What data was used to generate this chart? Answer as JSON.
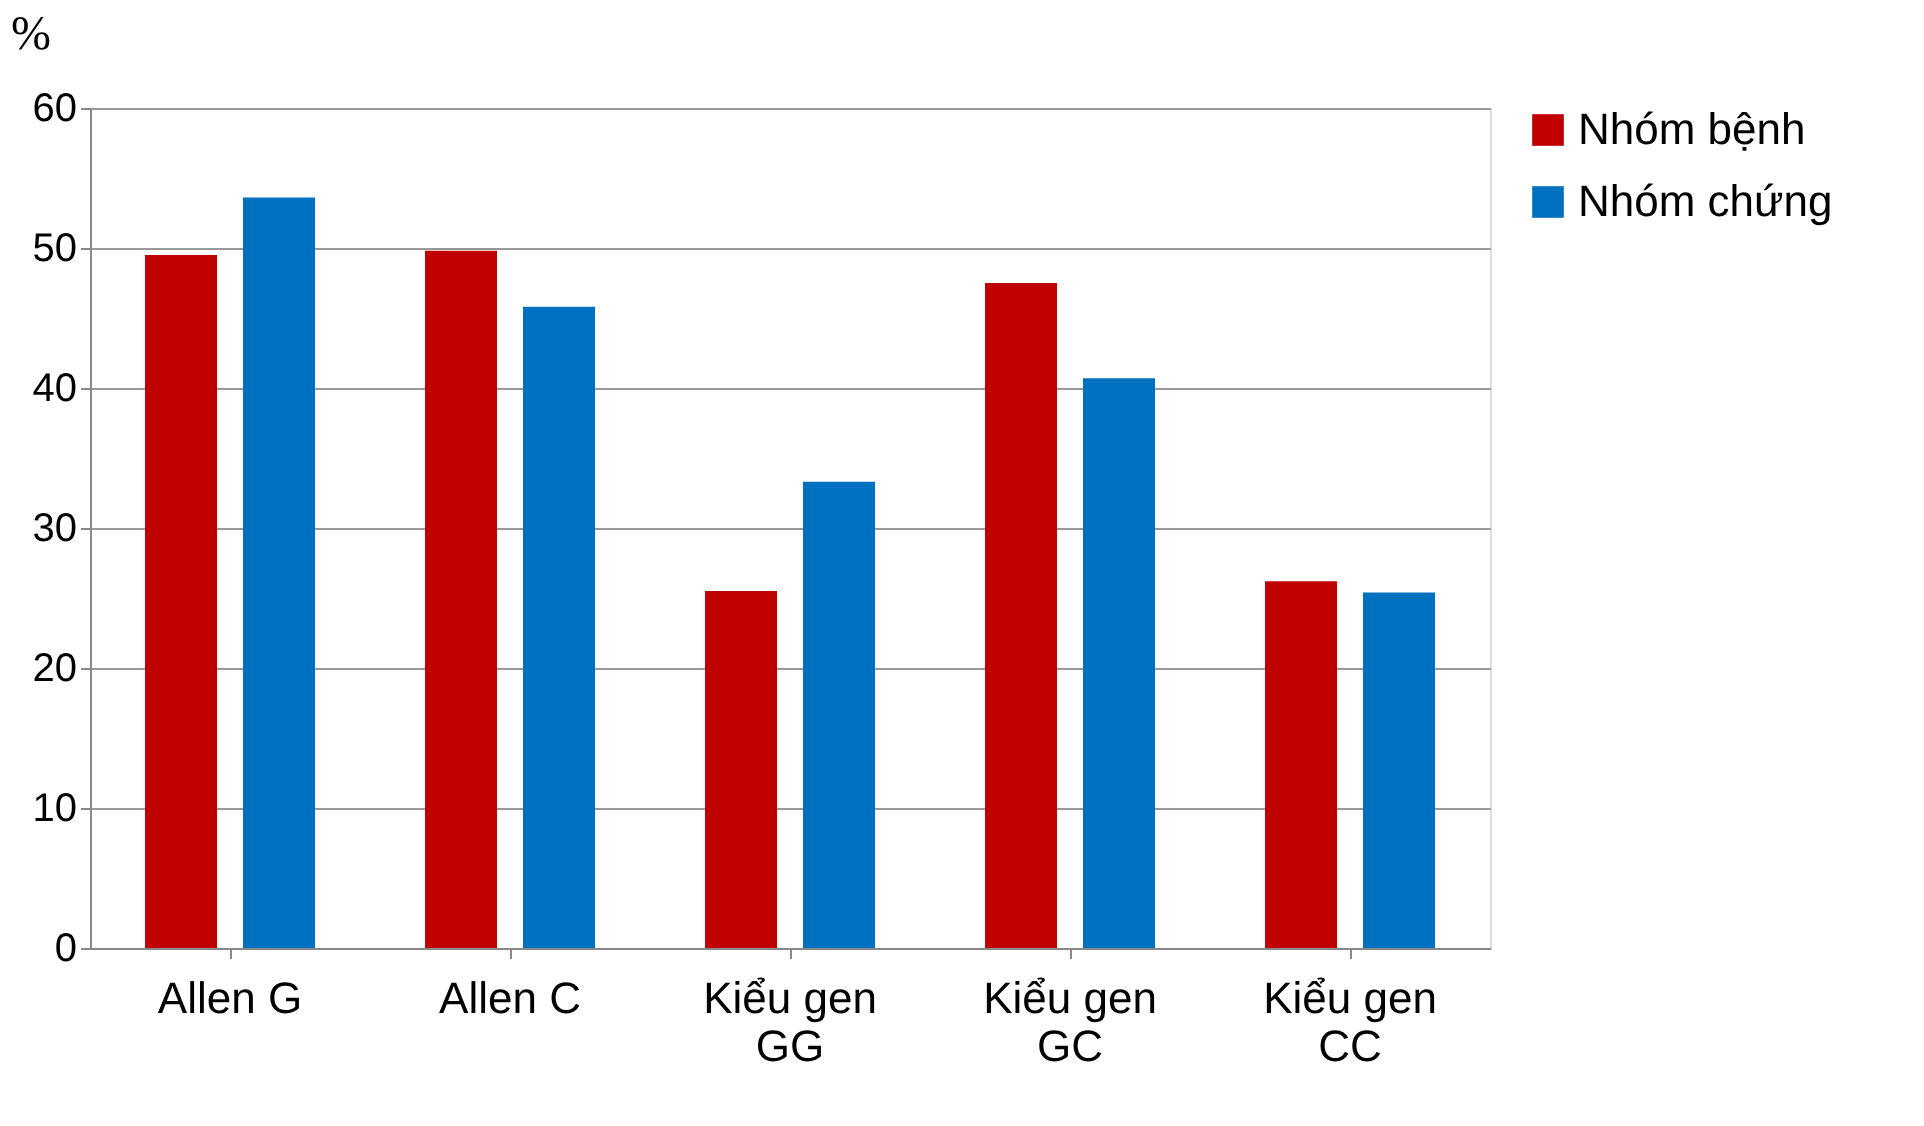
{
  "chart_data": {
    "type": "bar",
    "ylabel": "%",
    "categories": [
      "Allen G",
      "Allen C",
      "Kiểu gen GG",
      "Kiểu gen GC",
      "Kiểu gen CC"
    ],
    "series": [
      {
        "name": "Nhóm bệnh",
        "color": "#c00000",
        "values": [
          49.5,
          49.8,
          25.5,
          47.5,
          26.2
        ]
      },
      {
        "name": "Nhóm chứng",
        "color": "#0070c0",
        "values": [
          53.6,
          45.8,
          33.3,
          40.7,
          25.4
        ]
      }
    ],
    "ylim": [
      0,
      60
    ],
    "yticks": [
      0,
      10,
      20,
      30,
      40,
      50,
      60
    ],
    "grid": "y",
    "legend": "right"
  }
}
